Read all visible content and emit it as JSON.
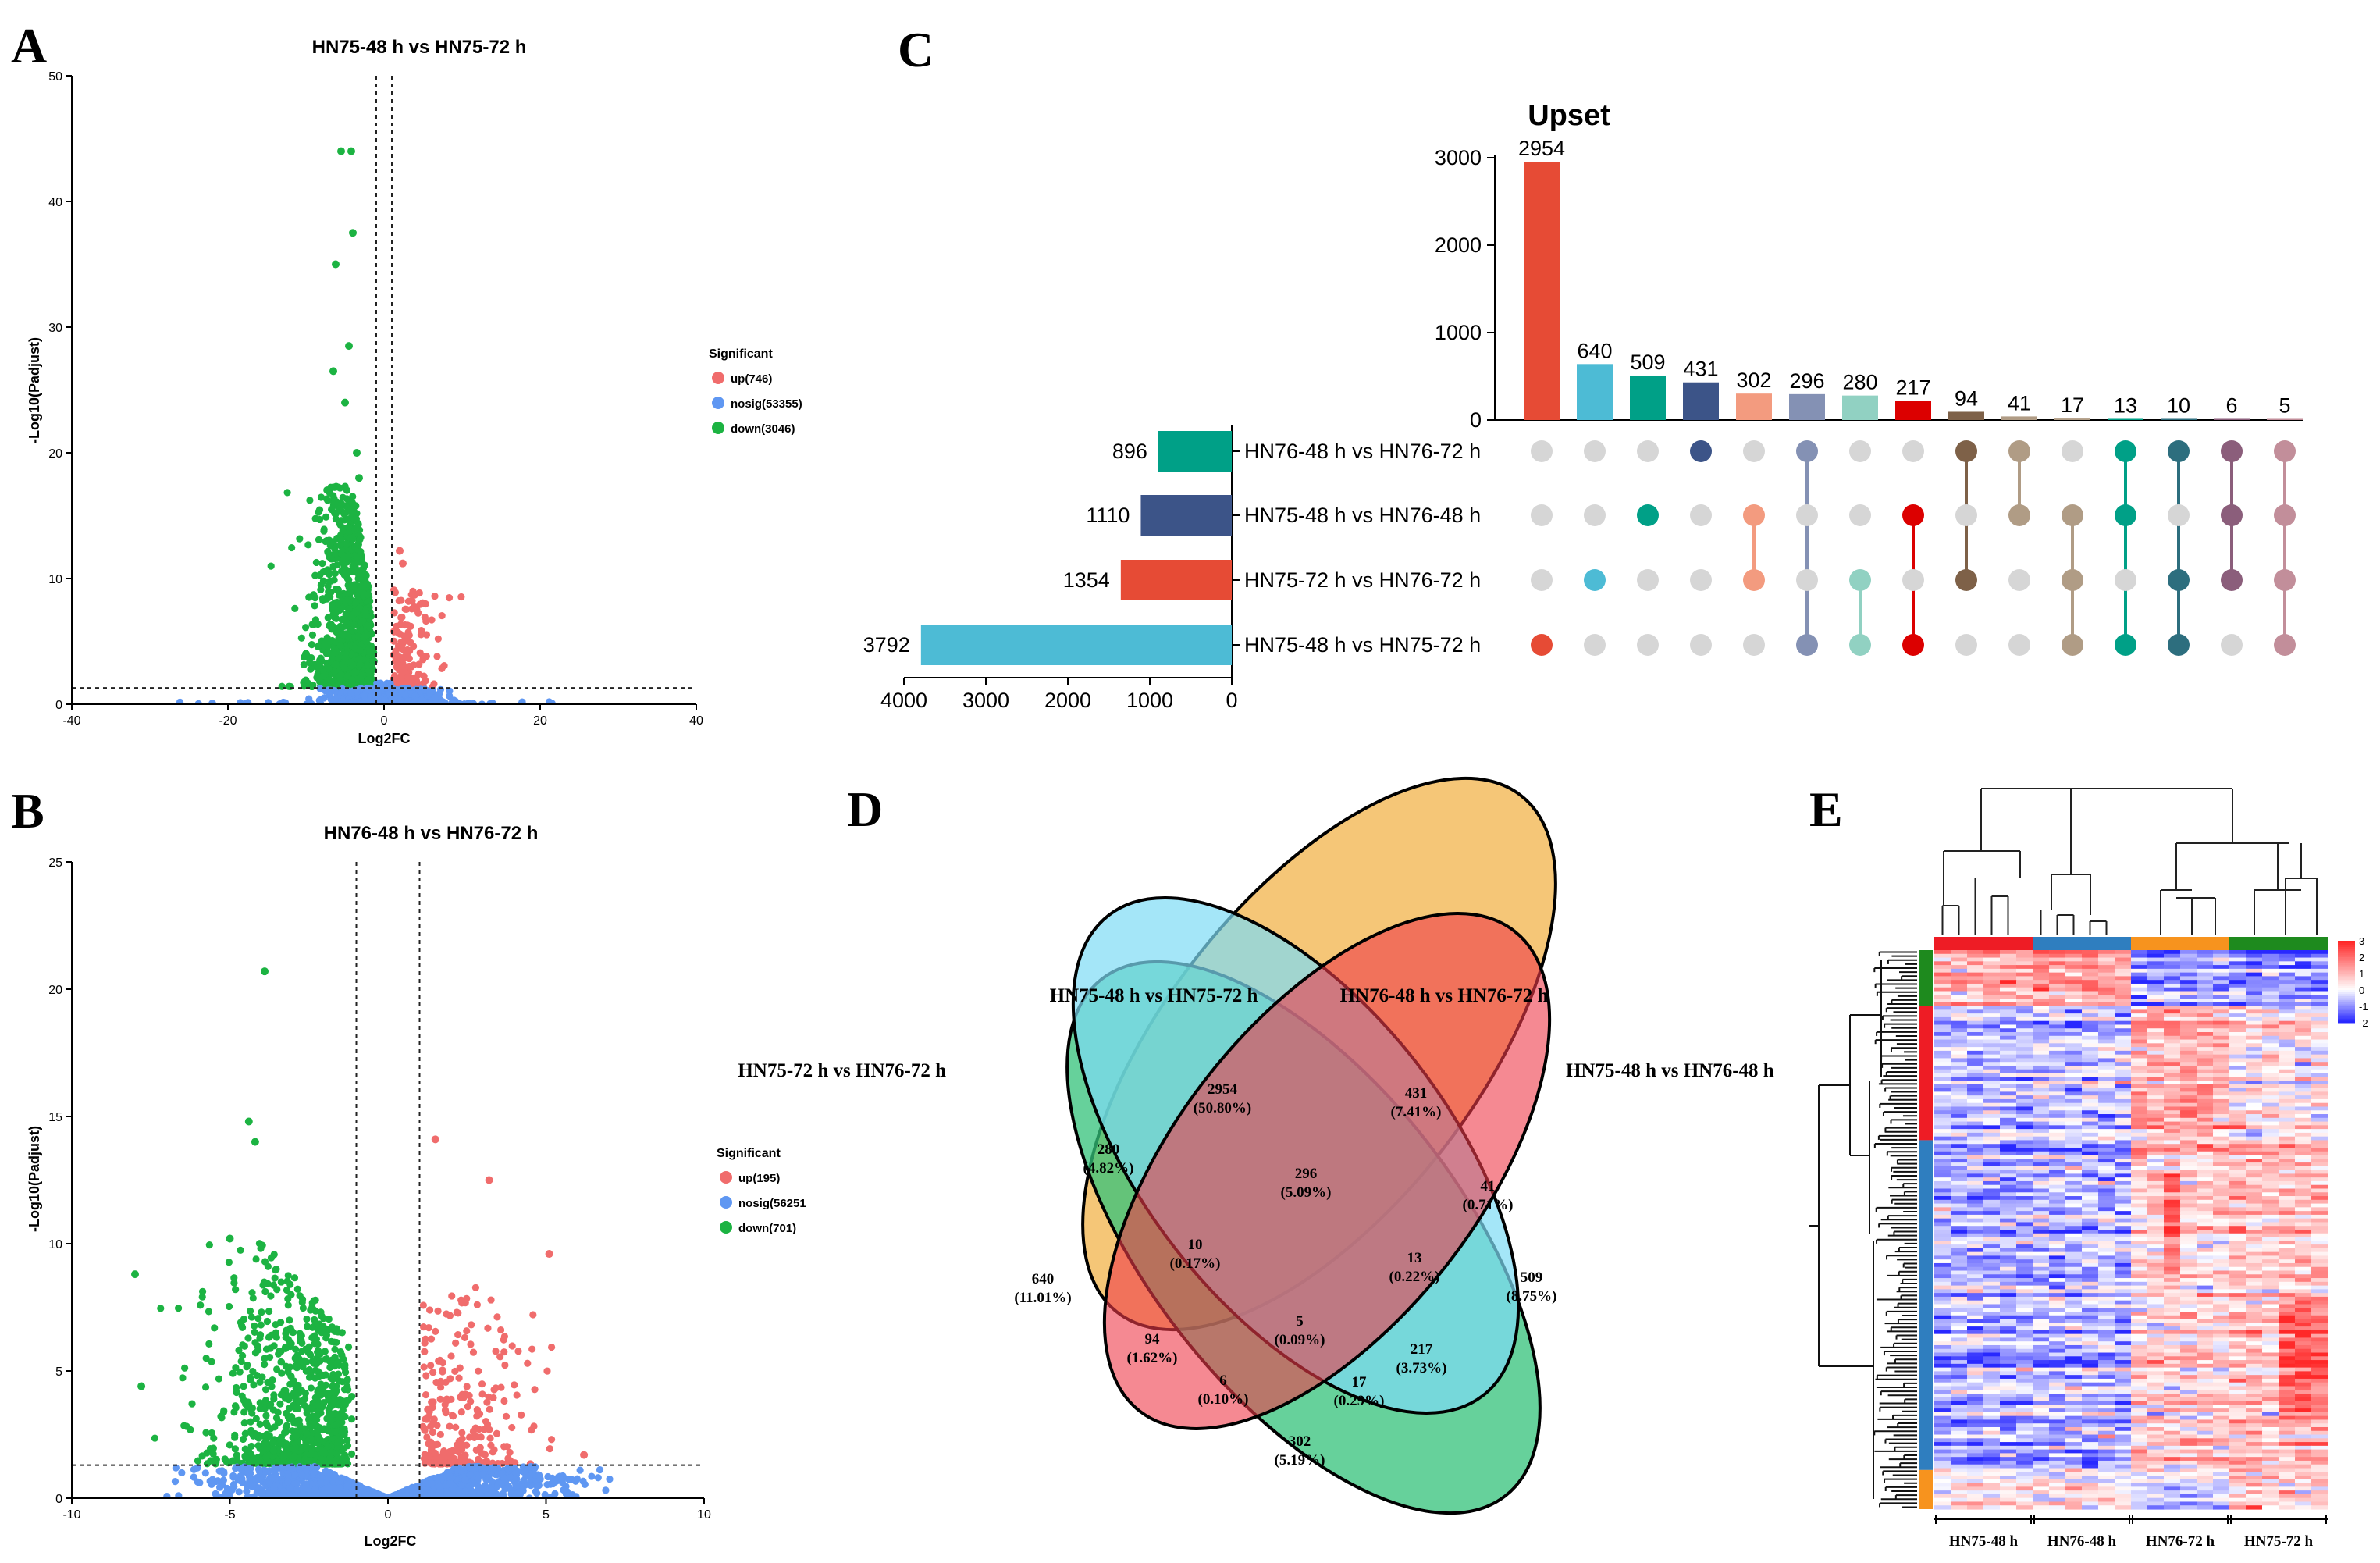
{
  "panels": {
    "A": "A",
    "B": "B",
    "C": "C",
    "D": "D",
    "E": "E"
  },
  "colors": {
    "up": "#f06c6c",
    "nosig": "#5f97f2",
    "down": "#1cb342"
  },
  "chart_data": [
    {
      "id": "A",
      "type": "scatter",
      "title": "HN75-48 h vs HN75-72 h",
      "xlabel": "Log2FC",
      "ylabel": "-Log10(Padjust)",
      "xlim": [
        -40,
        40
      ],
      "ylim": [
        0,
        50
      ],
      "xticks": [
        -40,
        -20,
        0,
        20,
        40
      ],
      "yticks": [
        0,
        10,
        20,
        30,
        40,
        50
      ],
      "vlines": [
        -1,
        1
      ],
      "hline": 1.3,
      "legend": {
        "title": "Significant",
        "items": [
          "up(746)",
          "nosig(53355)",
          "down(3046)"
        ],
        "position": "right"
      },
      "highlight_points": [
        [
          -5.5,
          44
        ],
        [
          -4.2,
          44
        ],
        [
          -4,
          37.5
        ],
        [
          -6.2,
          35
        ],
        [
          -4.5,
          28.5
        ],
        [
          -6.5,
          26.5
        ],
        [
          -5,
          24
        ],
        [
          -3.5,
          20
        ],
        [
          -3.2,
          18
        ],
        [
          2,
          12.2
        ],
        [
          2.4,
          11.2
        ],
        [
          -22,
          0.05
        ],
        [
          21.5,
          0.05
        ],
        [
          -10,
          4
        ]
      ]
    },
    {
      "id": "B",
      "type": "scatter",
      "title": "HN76-48 h vs HN76-72 h",
      "xlabel": "Log2FC",
      "ylabel": "-Log10(Padjust)",
      "xlim": [
        -10,
        10
      ],
      "ylim": [
        0,
        25
      ],
      "xticks": [
        -10,
        -5,
        0,
        5,
        10
      ],
      "yticks": [
        0,
        5,
        10,
        15,
        20,
        25
      ],
      "vlines": [
        -1,
        1
      ],
      "hline": 1.3,
      "legend": {
        "title": "Significant",
        "items": [
          "up(195)",
          "nosig(56251",
          "down(701)"
        ],
        "position": "right"
      },
      "highlight_points": [
        [
          -3.9,
          20.7
        ],
        [
          -4.4,
          14.8
        ],
        [
          -4.2,
          14
        ],
        [
          -5,
          10.2
        ],
        [
          -8,
          8.8
        ],
        [
          1.5,
          14.1
        ],
        [
          3.2,
          12.5
        ],
        [
          5.1,
          9.6
        ],
        [
          6.2,
          1.7
        ],
        [
          -7.8,
          4.4
        ]
      ]
    },
    {
      "id": "C",
      "type": "bar",
      "title": "Upset",
      "intersection_values": [
        2954,
        640,
        509,
        431,
        302,
        296,
        280,
        217,
        94,
        41,
        17,
        13,
        10,
        6,
        5
      ],
      "intersection_colors": [
        "#e64b35",
        "#4dbbd5",
        "#00a087",
        "#3c5488",
        "#f39b7f",
        "#8491b4",
        "#91d1c2",
        "#dc0000",
        "#7e6148",
        "#b09c85",
        "#b09c85",
        "#00a087",
        "#2d6e7e",
        "#8b5e7b",
        "#c28e9a"
      ],
      "yticks": [
        0,
        1000,
        2000,
        3000
      ],
      "ylim": [
        0,
        3000
      ],
      "sets": [
        {
          "name": "HN76-48 h vs HN76-72 h",
          "size": 896,
          "color": "#00a087"
        },
        {
          "name": "HN75-48 h vs HN76-48 h",
          "size": 1110,
          "color": "#3c5488"
        },
        {
          "name": "HN75-72 h vs HN76-72 h",
          "size": 1354,
          "color": "#e64b35"
        },
        {
          "name": "HN75-48 h vs HN75-72 h",
          "size": 3792,
          "color": "#4dbbd5"
        }
      ],
      "set_xticks": [
        4000,
        3000,
        2000,
        1000,
        0
      ],
      "set_xlim": [
        0,
        4000
      ],
      "matrix": [
        [
          3
        ],
        [
          2
        ],
        [
          1
        ],
        [
          0
        ],
        [
          1,
          2
        ],
        [
          0,
          3
        ],
        [
          2,
          3
        ],
        [
          1,
          3
        ],
        [
          0,
          2
        ],
        [
          0,
          1
        ],
        [
          1,
          2,
          3
        ],
        [
          0,
          1,
          3
        ],
        [
          0,
          2,
          3
        ],
        [
          0,
          1,
          2
        ],
        [
          0,
          1,
          2,
          3
        ]
      ]
    },
    {
      "id": "D",
      "type": "venn",
      "set_labels": [
        "HN75-48 h vs HN75-72 h",
        "HN76-48 h vs HN76-72 h",
        "HN75-72 h vs HN76-72 h",
        "HN75-48 h vs HN76-48 h"
      ],
      "regions": [
        {
          "value": "2954",
          "pct": "(50.80%)"
        },
        {
          "value": "431",
          "pct": "(7.41%)"
        },
        {
          "value": "280",
          "pct": "(4.82%)"
        },
        {
          "value": "296",
          "pct": "(5.09%)"
        },
        {
          "value": "41",
          "pct": "(0.71%)"
        },
        {
          "value": "10",
          "pct": "(0.17%)"
        },
        {
          "value": "13",
          "pct": "(0.22%)"
        },
        {
          "value": "640",
          "pct": "(11.01%)"
        },
        {
          "value": "509",
          "pct": "(8.75%)"
        },
        {
          "value": "5",
          "pct": "(0.09%)"
        },
        {
          "value": "94",
          "pct": "(1.62%)"
        },
        {
          "value": "217",
          "pct": "(3.73%)"
        },
        {
          "value": "6",
          "pct": "(0.10%)"
        },
        {
          "value": "17",
          "pct": "(0.29%)"
        },
        {
          "value": "302",
          "pct": "(5.19%)"
        }
      ]
    },
    {
      "id": "E",
      "type": "heatmap",
      "column_groups": [
        "HN75-48 h",
        "HN76-48 h",
        "HN76-72 h",
        "HN75-72 h"
      ],
      "column_group_colors": [
        "#ee1c25",
        "#2f7ebf",
        "#f7931e",
        "#1e8a1e"
      ],
      "row_cluster_colors": [
        "#1e8a1e",
        "#ee1c25",
        "#2f7ebf",
        "#f7931e"
      ],
      "legend_ticks": [
        "3",
        "2",
        "1",
        "0",
        "-1",
        "-2"
      ],
      "color_range": [
        -2,
        3
      ]
    }
  ]
}
